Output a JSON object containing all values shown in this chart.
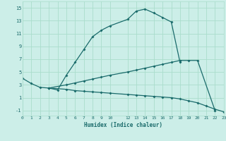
{
  "xlabel": "Humidex (Indice chaleur)",
  "background_color": "#cceee8",
  "grid_color": "#aaddcc",
  "line_color": "#1a6b6b",
  "xlim": [
    0,
    23
  ],
  "ylim": [
    -1.8,
    16
  ],
  "xtick_labels": [
    "0",
    "1",
    "2",
    "3",
    "4",
    "5",
    "6",
    "7",
    "8",
    "9",
    "10",
    "12",
    "13",
    "14",
    "15",
    "16",
    "17",
    "18",
    "19",
    "20",
    "21",
    "22",
    "23"
  ],
  "xtick_pos": [
    0,
    1,
    2,
    3,
    4,
    5,
    6,
    7,
    8,
    9,
    10,
    12,
    13,
    14,
    15,
    16,
    17,
    18,
    19,
    20,
    21,
    22,
    23
  ],
  "ytick_labels": [
    "-1",
    "1",
    "3",
    "5",
    "7",
    "9",
    "11",
    "13",
    "15"
  ],
  "ytick_pos": [
    -1,
    1,
    3,
    5,
    7,
    9,
    11,
    13,
    15
  ],
  "line1_x": [
    0,
    1,
    2,
    3,
    4,
    5,
    6,
    7,
    8,
    9,
    10,
    12,
    13,
    14,
    15,
    16,
    17,
    18
  ],
  "line1_y": [
    4.0,
    3.2,
    2.6,
    2.5,
    2.2,
    4.5,
    6.5,
    8.5,
    10.5,
    11.5,
    12.2,
    13.2,
    14.5,
    14.8,
    14.2,
    13.5,
    12.8,
    6.5
  ],
  "line2_x": [
    3,
    5,
    6,
    7,
    8,
    9,
    10,
    12,
    13,
    14,
    15,
    16,
    17,
    18,
    19,
    20,
    22
  ],
  "line2_y": [
    2.5,
    3.0,
    3.3,
    3.6,
    3.9,
    4.2,
    4.5,
    5.0,
    5.3,
    5.6,
    5.9,
    6.2,
    6.5,
    6.8,
    6.8,
    6.8,
    -1.0
  ],
  "line3_x": [
    3,
    5,
    6,
    7,
    8,
    9,
    10,
    12,
    13,
    14,
    15,
    16,
    17,
    18,
    19,
    20,
    21,
    22,
    23
  ],
  "line3_y": [
    2.5,
    2.3,
    2.1,
    2.0,
    1.9,
    1.8,
    1.7,
    1.5,
    1.4,
    1.3,
    1.2,
    1.1,
    1.0,
    0.8,
    0.5,
    0.2,
    -0.3,
    -0.8,
    -1.2
  ]
}
